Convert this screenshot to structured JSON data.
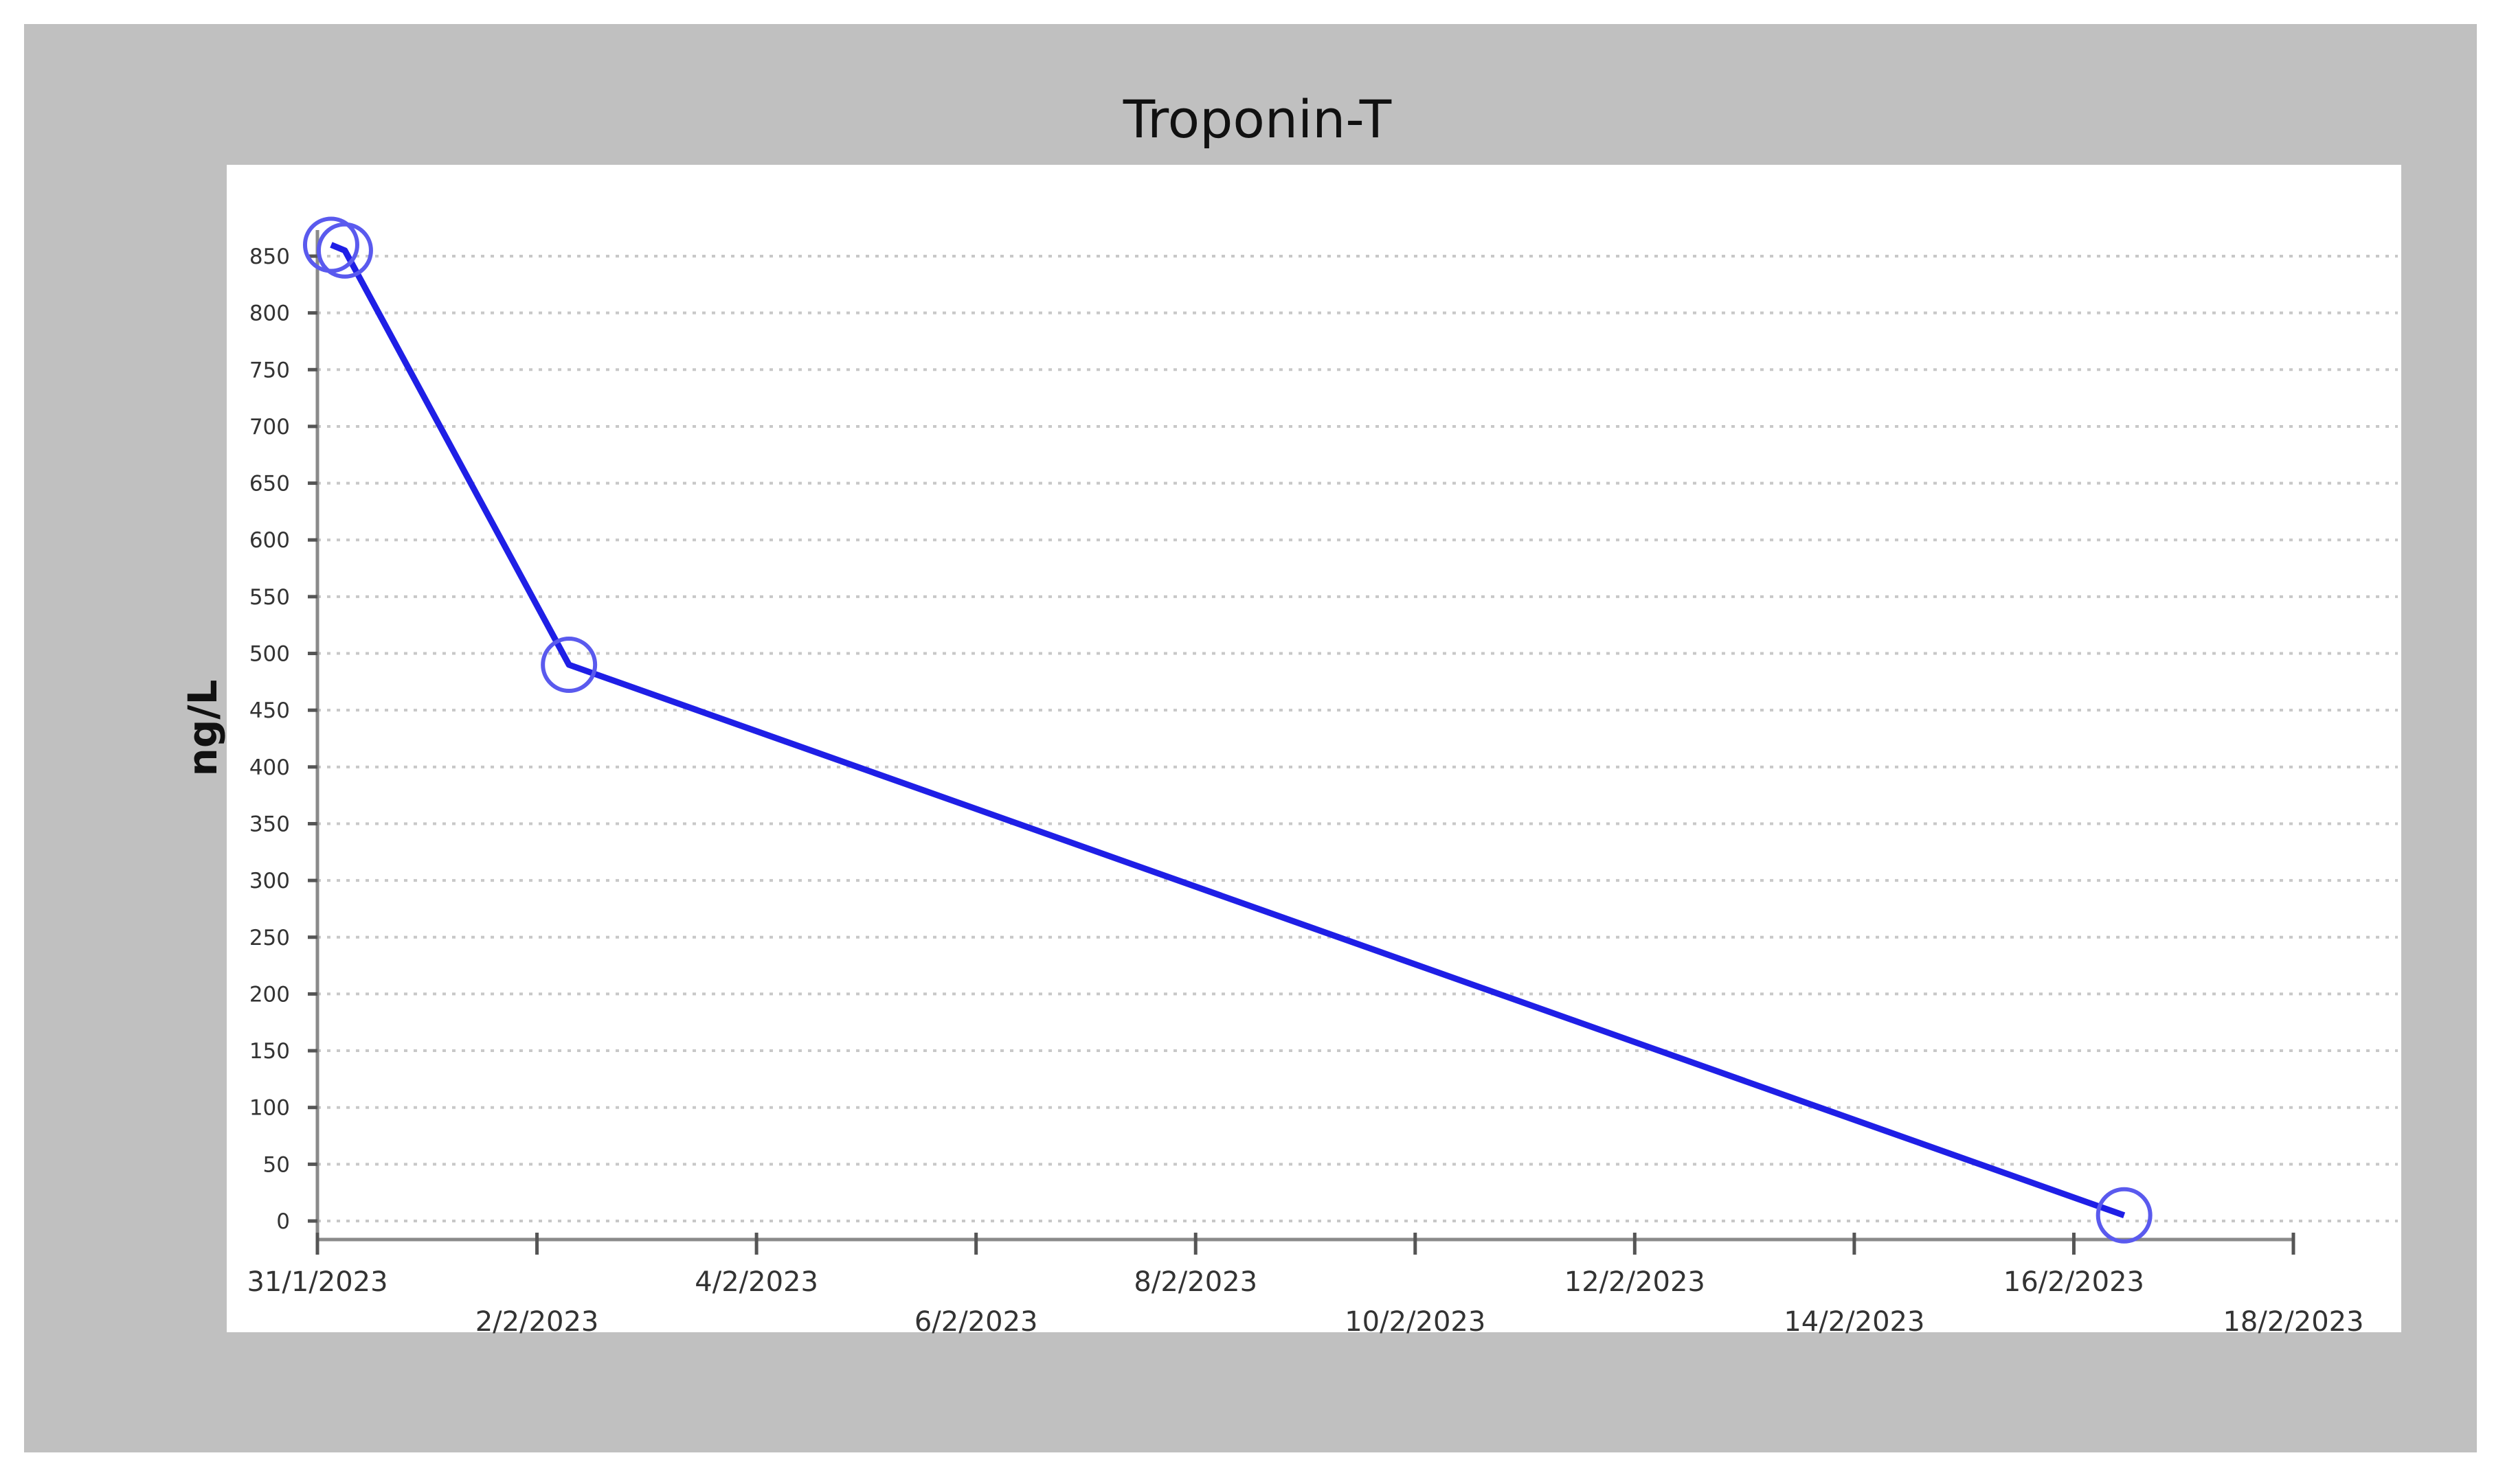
{
  "chart_data": {
    "type": "line",
    "title": "Troponin-T",
    "xlabel": "",
    "ylabel": "ng/L",
    "ylim": [
      0,
      850
    ],
    "y_ticks": [
      0,
      50,
      100,
      150,
      200,
      250,
      300,
      350,
      400,
      450,
      500,
      550,
      600,
      650,
      700,
      750,
      800,
      850
    ],
    "x_range": [
      "31/1/2023",
      "18/2/2023"
    ],
    "x_ticks": [
      "31/1/2023",
      "2/2/2023",
      "4/2/2023",
      "6/2/2023",
      "8/2/2023",
      "10/2/2023",
      "12/2/2023",
      "14/2/2023",
      "16/2/2023",
      "18/2/2023"
    ],
    "grid": "horizontal dotted",
    "legend": "none",
    "series": [
      {
        "x": [
          "2023-01-31 03:00",
          "2023-01-31 06:00",
          "2023-02-02 07:00",
          "2023-02-16 11:00"
        ],
        "y": [
          860,
          855,
          490,
          5
        ],
        "color": "#1f1fe6",
        "marker": "open-circle"
      }
    ]
  }
}
